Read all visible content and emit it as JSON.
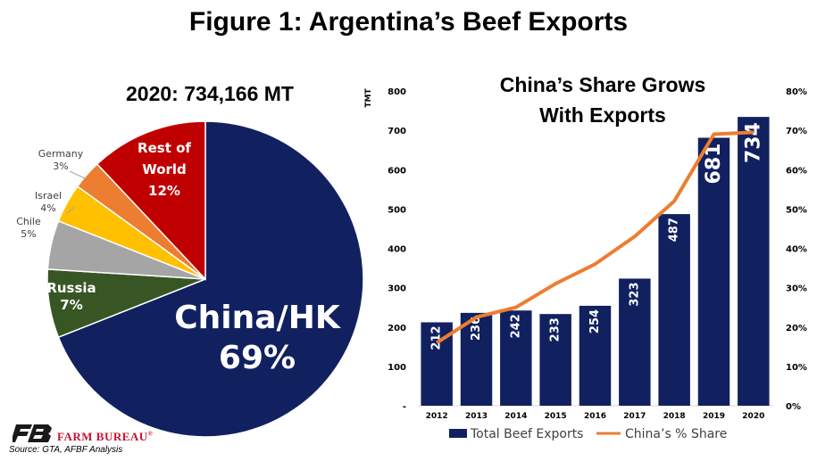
{
  "title": "Figure 1: Argentina’s Beef Exports",
  "source": "Source:  GTA, AFBF Analysis",
  "brand": "FARM BUREAU",
  "brand_mark": "®",
  "colors": {
    "navy": "#112160",
    "orange": "#ed7d31",
    "red": "#c00000",
    "green": "#375623",
    "gray": "#a5a5a5",
    "yellow": "#ffc000",
    "orange2": "#ed7d31"
  },
  "chart_data": [
    {
      "type": "pie",
      "title": "2020: 734,166 MT",
      "slices": [
        {
          "label": "China/HK",
          "value": 69,
          "display": "69%",
          "color": "#112160"
        },
        {
          "label": "Russia",
          "value": 7,
          "display": "7%",
          "color": "#375623"
        },
        {
          "label": "Chile",
          "value": 5,
          "display": "5%",
          "color": "#a5a5a5"
        },
        {
          "label": "Israel",
          "value": 4,
          "display": "4%",
          "color": "#ffc000"
        },
        {
          "label": "Germany",
          "value": 3,
          "display": "3%",
          "color": "#ed7d31"
        },
        {
          "label": "Rest of World",
          "value": 12,
          "display": "12%",
          "color": "#c00000"
        }
      ]
    },
    {
      "type": "bar",
      "title": [
        "China’s Share Grows",
        "With Exports"
      ],
      "categories": [
        "2012",
        "2013",
        "2014",
        "2015",
        "2016",
        "2017",
        "2018",
        "2019",
        "2020"
      ],
      "series": [
        {
          "name": "Total Beef Exports",
          "type": "bar",
          "axis": "left",
          "color": "#112160",
          "values": [
            212,
            236,
            242,
            233,
            254,
            323,
            487,
            681,
            734
          ]
        },
        {
          "name": "China’s % Share",
          "type": "line",
          "axis": "right",
          "color": "#ed7d31",
          "values": [
            16,
            22.5,
            25,
            31,
            36,
            43,
            52,
            69,
            69.5
          ]
        }
      ],
      "ylabel_left": "TMT",
      "ylim_left": [
        0,
        800
      ],
      "yticks_left": [
        "-",
        "100",
        "200",
        "300",
        "400",
        "500",
        "600",
        "700",
        "800"
      ],
      "ylim_right": [
        0,
        80
      ],
      "yticks_right": [
        "0%",
        "10%",
        "20%",
        "30%",
        "40%",
        "50%",
        "60%",
        "70%",
        "80%"
      ],
      "legend_position": "bottom",
      "grid": false
    }
  ]
}
